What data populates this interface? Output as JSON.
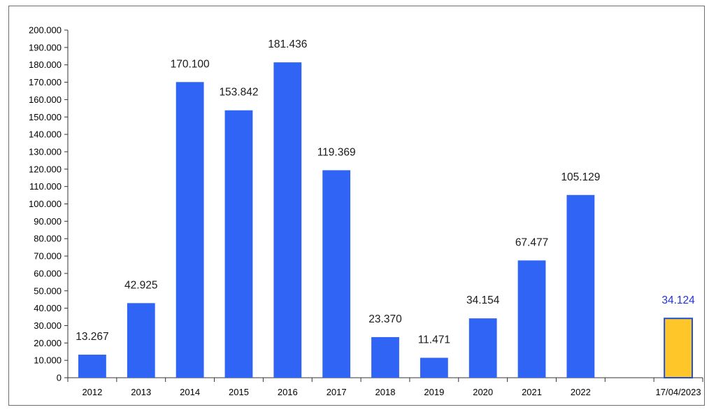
{
  "chart_data": {
    "type": "bar",
    "categories": [
      "2012",
      "2013",
      "2014",
      "2015",
      "2016",
      "2017",
      "2018",
      "2019",
      "2020",
      "2021",
      "2022",
      "",
      "17/04/2023"
    ],
    "values": [
      13267,
      42925,
      170100,
      153842,
      181436,
      119369,
      23370,
      11471,
      34154,
      67477,
      105129,
      null,
      34124
    ],
    "value_labels": [
      "13.267",
      "42.925",
      "170.100",
      "153.842",
      "181.436",
      "119.369",
      "23.370",
      "11.471",
      "34.154",
      "67.477",
      "105.129",
      "",
      "34.124"
    ],
    "highlight_index": 12,
    "title": "",
    "xlabel": "",
    "ylabel": "",
    "ylim": [
      0,
      200000
    ],
    "ytick_step": 10000,
    "ytick_labels": [
      "0",
      "10.000",
      "20.000",
      "30.000",
      "40.000",
      "50.000",
      "60.000",
      "70.000",
      "80.000",
      "90.000",
      "100.000",
      "110.000",
      "120.000",
      "130.000",
      "140.000",
      "150.000",
      "160.000",
      "170.000",
      "180.000",
      "190.000",
      "200.000"
    ],
    "grid": false,
    "legend": "none",
    "colors": {
      "bar": "#2f64f5",
      "highlight_bar": "#ffc62a",
      "highlight_border": "#1f4fd6",
      "highlight_label": "#2233cc",
      "label": "#1a1a1a",
      "axis": "#333333",
      "frame": "#6e6e6e"
    }
  }
}
